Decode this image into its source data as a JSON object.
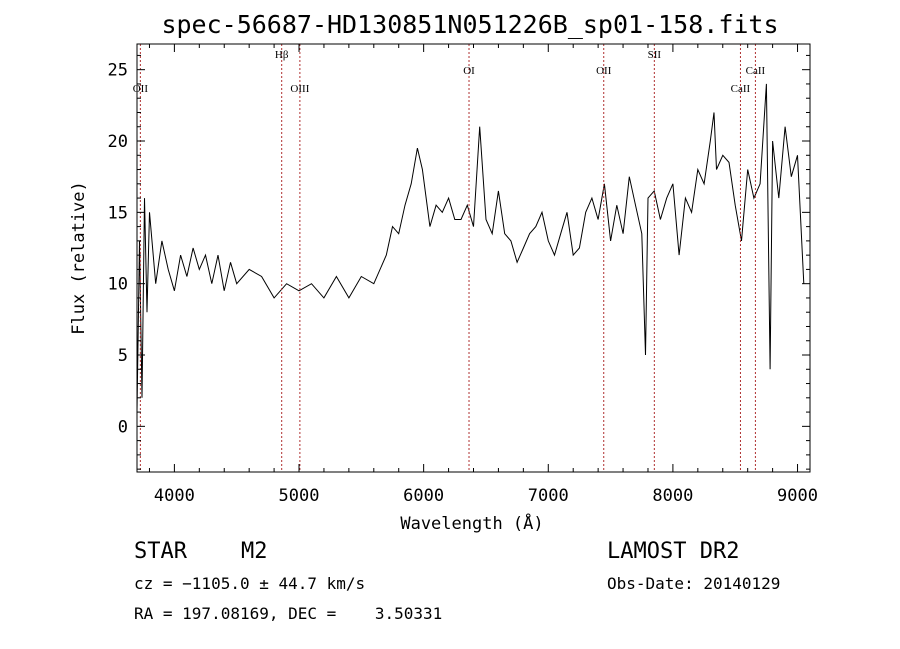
{
  "chart_data": {
    "type": "line",
    "title": "spec-56687-HD130851N051226B_sp01-158.fits",
    "xlabel": "Wavelength (Å)",
    "ylabel": "Flux (relative)",
    "xlim": [
      3700,
      9100
    ],
    "ylim": [
      -3.2,
      26.8
    ],
    "xticks": [
      4000,
      5000,
      6000,
      7000,
      8000,
      9000
    ],
    "yticks": [
      0,
      5,
      10,
      15,
      20,
      25
    ],
    "grid": false,
    "series": [
      {
        "x": [
          3700,
          3720,
          3740,
          3760,
          3780,
          3800,
          3850,
          3900,
          3950,
          4000,
          4050,
          4100,
          4150,
          4200,
          4250,
          4300,
          4350,
          4400,
          4450,
          4500,
          4600,
          4700,
          4800,
          4900,
          5000,
          5100,
          5200,
          5300,
          5400,
          5500,
          5600,
          5700,
          5750,
          5800,
          5850,
          5900,
          5950,
          5990,
          6050,
          6100,
          6150,
          6200,
          6250,
          6300,
          6350,
          6400,
          6450,
          6500,
          6550,
          6600,
          6650,
          6700,
          6750,
          6800,
          6850,
          6900,
          6950,
          7000,
          7050,
          7100,
          7150,
          7200,
          7250,
          7300,
          7350,
          7400,
          7450,
          7500,
          7550,
          7600,
          7650,
          7700,
          7750,
          7780,
          7800,
          7850,
          7900,
          7950,
          8000,
          8050,
          8100,
          8150,
          8200,
          8250,
          8300,
          8330,
          8350,
          8400,
          8450,
          8500,
          8550,
          8600,
          8650,
          8700,
          8750,
          8780,
          8800,
          8850,
          8900,
          8950,
          9000,
          9050
        ],
        "y": [
          1.0,
          13.0,
          2.0,
          16.0,
          8.0,
          15.0,
          10.0,
          13.0,
          11.0,
          9.5,
          12.0,
          10.5,
          12.5,
          11.0,
          12.0,
          10.0,
          12.0,
          9.5,
          11.5,
          10.0,
          11.0,
          10.5,
          9.0,
          10.0,
          9.5,
          10.0,
          9.0,
          10.5,
          9.0,
          10.5,
          10.0,
          12.0,
          14.0,
          13.5,
          15.5,
          17.0,
          19.5,
          18.0,
          14.0,
          15.5,
          15.0,
          16.0,
          14.5,
          14.5,
          15.5,
          14.0,
          21.0,
          14.5,
          13.5,
          16.5,
          13.5,
          13.0,
          11.5,
          12.5,
          13.5,
          14.0,
          15.0,
          13.0,
          12.0,
          13.5,
          15.0,
          12.0,
          12.5,
          15.0,
          16.0,
          14.5,
          17.0,
          13.0,
          15.5,
          13.5,
          17.5,
          15.5,
          13.5,
          5.0,
          16.0,
          16.5,
          14.5,
          16.0,
          17.0,
          12.0,
          16.0,
          15.0,
          18.0,
          17.0,
          20.0,
          22.0,
          18.0,
          19.0,
          18.5,
          15.5,
          13.0,
          18.0,
          16.0,
          17.0,
          24.0,
          4.0,
          20.0,
          16.0,
          21.0,
          17.5,
          19.0,
          10.0
        ]
      }
    ],
    "lines": [
      {
        "label": "OII",
        "x": 3727
      },
      {
        "label": "Hβ",
        "x": 4861
      },
      {
        "label": "OIII",
        "x": 5007
      },
      {
        "label": "OI",
        "x": 6364
      },
      {
        "label": "OII",
        "x": 7445
      },
      {
        "label": "SII",
        "x": 7851
      },
      {
        "label": "CaII",
        "x": 8542
      },
      {
        "label": "CaII",
        "x": 8662
      }
    ]
  },
  "info": {
    "class": "STAR",
    "subclass": "M2",
    "survey": "LAMOST DR2",
    "redshift": "cz = −1105.0 ± 44.7 km/s",
    "obs_date": "Obs-Date: 20140129",
    "coords": "RA = 197.08169, DEC =    3.50331"
  }
}
